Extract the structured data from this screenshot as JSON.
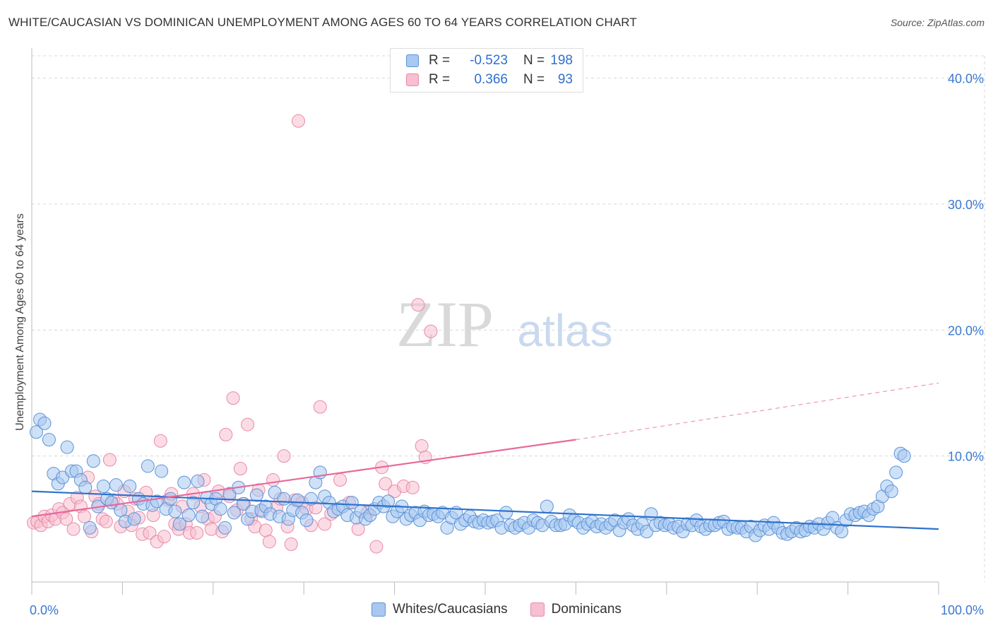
{
  "title": "WHITE/CAUCASIAN VS DOMINICAN UNEMPLOYMENT AMONG AGES 60 TO 64 YEARS CORRELATION CHART",
  "source": "Source: ZipAtlas.com",
  "watermark": {
    "zip": "ZIP",
    "atlas": "atlas"
  },
  "legend": {
    "rows": [
      {
        "name": "Whites/Caucasians",
        "r_label": "R =",
        "r_value": "-0.523",
        "n_label": "N =",
        "n_value": "198",
        "color": "#7eaee6"
      },
      {
        "name": "Dominicans",
        "r_label": "R =",
        "r_value": "0.366",
        "n_label": "N =",
        "n_value": "93",
        "color": "#f0a0bb"
      }
    ]
  },
  "colors": {
    "blue_fill": "#a8c8f0",
    "blue_stroke": "#5b92d8",
    "blue_line": "#2f72cc",
    "pink_fill": "#f7bfd0",
    "pink_stroke": "#e88aa8",
    "pink_line": "#e8689a",
    "grid": "#d8d8d8",
    "axis_text": "#3a78d0"
  },
  "chart_data": {
    "type": "scatter",
    "title": "WHITE/CAUCASIAN VS DOMINICAN UNEMPLOYMENT AMONG AGES 60 TO 64 YEARS CORRELATION CHART",
    "xlabel": "",
    "ylabel": "Unemployment Among Ages 60 to 64 years",
    "xlim": [
      0,
      100
    ],
    "ylim": [
      0,
      42
    ],
    "x_tick_labels": [
      {
        "value": 0,
        "label": "0.0%"
      },
      {
        "value": 100,
        "label": "100.0%"
      }
    ],
    "y_tick_labels": [
      {
        "value": 10,
        "label": "10.0%"
      },
      {
        "value": 20,
        "label": "20.0%"
      },
      {
        "value": 30,
        "label": "30.0%"
      },
      {
        "value": 40,
        "label": "40.0%"
      }
    ],
    "series": [
      {
        "name": "Whites/Caucasians",
        "points": [
          [
            0.5,
            11.9
          ],
          [
            0.9,
            12.9
          ],
          [
            1.4,
            12.6
          ],
          [
            1.9,
            11.3
          ],
          [
            2.4,
            8.6
          ],
          [
            2.9,
            7.8
          ],
          [
            3.4,
            8.3
          ],
          [
            3.9,
            10.7
          ],
          [
            4.4,
            8.8
          ],
          [
            4.9,
            8.8
          ],
          [
            5.4,
            8.1
          ],
          [
            5.9,
            7.5
          ],
          [
            6.4,
            4.3
          ],
          [
            6.8,
            9.6
          ],
          [
            7.3,
            6.0
          ],
          [
            7.9,
            7.6
          ],
          [
            8.3,
            6.6
          ],
          [
            8.8,
            6.3
          ],
          [
            9.3,
            7.7
          ],
          [
            9.8,
            5.7
          ],
          [
            10.3,
            4.8
          ],
          [
            10.8,
            7.6
          ],
          [
            11.3,
            5.0
          ],
          [
            11.8,
            6.6
          ],
          [
            12.3,
            6.2
          ],
          [
            12.8,
            9.2
          ],
          [
            13.3,
            6.1
          ],
          [
            13.8,
            6.4
          ],
          [
            14.3,
            8.8
          ],
          [
            14.8,
            5.8
          ],
          [
            15.3,
            6.6
          ],
          [
            15.8,
            5.6
          ],
          [
            16.3,
            4.6
          ],
          [
            16.8,
            7.9
          ],
          [
            17.3,
            5.3
          ],
          [
            17.8,
            6.3
          ],
          [
            18.3,
            8.0
          ],
          [
            18.8,
            5.2
          ],
          [
            19.3,
            6.7
          ],
          [
            19.8,
            6.2
          ],
          [
            20.3,
            6.6
          ],
          [
            20.8,
            5.8
          ],
          [
            21.3,
            4.3
          ],
          [
            21.8,
            7.0
          ],
          [
            22.3,
            5.5
          ],
          [
            22.8,
            7.5
          ],
          [
            23.3,
            6.2
          ],
          [
            23.8,
            5.0
          ],
          [
            24.3,
            5.6
          ],
          [
            24.8,
            6.9
          ],
          [
            25.3,
            5.7
          ],
          [
            25.8,
            6.0
          ],
          [
            26.3,
            5.4
          ],
          [
            26.8,
            7.1
          ],
          [
            27.3,
            5.2
          ],
          [
            27.8,
            6.6
          ],
          [
            28.3,
            5.0
          ],
          [
            28.8,
            5.7
          ],
          [
            29.3,
            6.5
          ],
          [
            29.8,
            5.5
          ],
          [
            30.3,
            4.9
          ],
          [
            30.8,
            6.6
          ],
          [
            31.3,
            7.9
          ],
          [
            31.8,
            8.7
          ],
          [
            32.3,
            6.8
          ],
          [
            32.8,
            6.3
          ],
          [
            33.3,
            5.6
          ],
          [
            33.8,
            5.8
          ],
          [
            34.3,
            6.0
          ],
          [
            34.8,
            5.3
          ],
          [
            35.3,
            6.3
          ],
          [
            35.8,
            5.1
          ],
          [
            36.3,
            5.6
          ],
          [
            36.8,
            5.0
          ],
          [
            37.3,
            5.3
          ],
          [
            37.8,
            5.8
          ],
          [
            38.3,
            6.3
          ],
          [
            38.8,
            6.0
          ],
          [
            39.3,
            6.4
          ],
          [
            39.8,
            5.2
          ],
          [
            40.3,
            5.6
          ],
          [
            40.8,
            6.0
          ],
          [
            41.3,
            5.0
          ],
          [
            41.8,
            5.3
          ],
          [
            42.3,
            5.5
          ],
          [
            42.8,
            4.9
          ],
          [
            43.3,
            5.6
          ],
          [
            43.8,
            5.3
          ],
          [
            44.3,
            5.4
          ],
          [
            44.8,
            5.2
          ],
          [
            45.3,
            5.5
          ],
          [
            45.8,
            4.3
          ],
          [
            46.3,
            5.1
          ],
          [
            46.8,
            5.5
          ],
          [
            47.3,
            4.6
          ],
          [
            47.8,
            4.9
          ],
          [
            48.3,
            5.2
          ],
          [
            48.8,
            4.8
          ],
          [
            49.3,
            4.7
          ],
          [
            49.8,
            4.9
          ],
          [
            50.3,
            4.7
          ],
          [
            50.8,
            4.8
          ],
          [
            51.3,
            4.9
          ],
          [
            51.8,
            4.3
          ],
          [
            52.3,
            5.5
          ],
          [
            52.8,
            4.5
          ],
          [
            53.3,
            4.3
          ],
          [
            53.8,
            4.5
          ],
          [
            54.3,
            4.7
          ],
          [
            54.8,
            4.3
          ],
          [
            55.3,
            4.9
          ],
          [
            55.8,
            4.7
          ],
          [
            56.3,
            4.5
          ],
          [
            56.8,
            6.0
          ],
          [
            57.3,
            4.8
          ],
          [
            57.8,
            4.5
          ],
          [
            58.3,
            4.5
          ],
          [
            58.8,
            4.6
          ],
          [
            59.3,
            5.3
          ],
          [
            59.8,
            4.9
          ],
          [
            60.3,
            4.7
          ],
          [
            60.8,
            4.3
          ],
          [
            61.3,
            4.6
          ],
          [
            61.8,
            4.8
          ],
          [
            62.3,
            4.4
          ],
          [
            62.8,
            4.6
          ],
          [
            63.3,
            4.3
          ],
          [
            63.8,
            4.6
          ],
          [
            64.3,
            4.9
          ],
          [
            64.8,
            4.1
          ],
          [
            65.3,
            4.7
          ],
          [
            65.8,
            5.0
          ],
          [
            66.3,
            4.5
          ],
          [
            66.8,
            4.2
          ],
          [
            67.3,
            4.6
          ],
          [
            67.8,
            4.0
          ],
          [
            68.3,
            5.4
          ],
          [
            68.8,
            4.5
          ],
          [
            69.3,
            4.7
          ],
          [
            69.8,
            4.5
          ],
          [
            70.3,
            4.6
          ],
          [
            70.8,
            4.3
          ],
          [
            71.3,
            4.4
          ],
          [
            71.8,
            4.0
          ],
          [
            72.3,
            4.6
          ],
          [
            72.8,
            4.5
          ],
          [
            73.3,
            4.9
          ],
          [
            73.8,
            4.4
          ],
          [
            74.3,
            4.2
          ],
          [
            74.8,
            4.5
          ],
          [
            75.3,
            4.5
          ],
          [
            75.8,
            4.7
          ],
          [
            76.3,
            4.8
          ],
          [
            76.8,
            4.2
          ],
          [
            77.3,
            4.4
          ],
          [
            77.8,
            4.3
          ],
          [
            78.3,
            4.3
          ],
          [
            78.8,
            4.0
          ],
          [
            79.3,
            4.4
          ],
          [
            79.8,
            3.7
          ],
          [
            80.3,
            4.1
          ],
          [
            80.8,
            4.5
          ],
          [
            81.3,
            4.2
          ],
          [
            81.8,
            4.7
          ],
          [
            82.3,
            4.3
          ],
          [
            82.8,
            3.9
          ],
          [
            83.3,
            3.8
          ],
          [
            83.8,
            4.0
          ],
          [
            84.3,
            4.3
          ],
          [
            84.8,
            4.0
          ],
          [
            85.3,
            4.1
          ],
          [
            85.8,
            4.4
          ],
          [
            86.3,
            4.3
          ],
          [
            86.8,
            4.6
          ],
          [
            87.3,
            4.2
          ],
          [
            87.8,
            4.7
          ],
          [
            88.3,
            5.1
          ],
          [
            88.8,
            4.3
          ],
          [
            89.3,
            4.0
          ],
          [
            89.8,
            4.9
          ],
          [
            90.3,
            5.4
          ],
          [
            90.8,
            5.3
          ],
          [
            91.3,
            5.5
          ],
          [
            91.8,
            5.6
          ],
          [
            92.3,
            5.3
          ],
          [
            92.8,
            5.8
          ],
          [
            93.3,
            6.0
          ],
          [
            93.8,
            6.8
          ],
          [
            94.3,
            7.6
          ],
          [
            94.8,
            7.2
          ],
          [
            95.3,
            8.7
          ],
          [
            95.8,
            10.2
          ],
          [
            96.2,
            10.0
          ]
        ]
      },
      {
        "name": "Dominicans",
        "points": [
          [
            0.2,
            4.7
          ],
          [
            0.6,
            4.8
          ],
          [
            1.0,
            4.5
          ],
          [
            1.4,
            5.2
          ],
          [
            1.8,
            4.8
          ],
          [
            2.2,
            5.3
          ],
          [
            2.6,
            5.0
          ],
          [
            3.0,
            5.8
          ],
          [
            3.4,
            5.5
          ],
          [
            3.8,
            5.0
          ],
          [
            4.2,
            6.2
          ],
          [
            4.6,
            4.2
          ],
          [
            5.0,
            6.7
          ],
          [
            5.4,
            6.0
          ],
          [
            5.8,
            5.2
          ],
          [
            6.2,
            8.3
          ],
          [
            6.6,
            4.0
          ],
          [
            7.0,
            6.8
          ],
          [
            7.4,
            6.2
          ],
          [
            7.8,
            5.0
          ],
          [
            8.2,
            4.8
          ],
          [
            8.6,
            9.7
          ],
          [
            9.0,
            6.5
          ],
          [
            9.4,
            6.2
          ],
          [
            9.8,
            4.4
          ],
          [
            10.2,
            7.2
          ],
          [
            10.6,
            5.6
          ],
          [
            11.0,
            4.5
          ],
          [
            11.4,
            6.6
          ],
          [
            11.8,
            5.1
          ],
          [
            12.2,
            3.8
          ],
          [
            12.6,
            7.1
          ],
          [
            13.0,
            3.9
          ],
          [
            13.4,
            5.3
          ],
          [
            13.8,
            3.2
          ],
          [
            14.2,
            11.2
          ],
          [
            14.6,
            3.6
          ],
          [
            15.0,
            6.5
          ],
          [
            15.4,
            7.0
          ],
          [
            15.8,
            4.6
          ],
          [
            16.2,
            4.2
          ],
          [
            16.6,
            6.0
          ],
          [
            17.0,
            4.6
          ],
          [
            17.4,
            3.9
          ],
          [
            17.8,
            7.0
          ],
          [
            18.2,
            3.9
          ],
          [
            18.6,
            6.0
          ],
          [
            19.0,
            8.1
          ],
          [
            19.4,
            5.0
          ],
          [
            19.8,
            4.2
          ],
          [
            20.2,
            5.2
          ],
          [
            20.6,
            7.2
          ],
          [
            21.0,
            4.0
          ],
          [
            21.4,
            11.7
          ],
          [
            21.8,
            6.8
          ],
          [
            22.2,
            14.6
          ],
          [
            22.6,
            5.7
          ],
          [
            23.0,
            9.0
          ],
          [
            23.4,
            6.2
          ],
          [
            23.8,
            12.5
          ],
          [
            24.2,
            5.0
          ],
          [
            24.6,
            4.4
          ],
          [
            25.0,
            7.3
          ],
          [
            25.4,
            5.6
          ],
          [
            25.8,
            4.1
          ],
          [
            26.2,
            3.2
          ],
          [
            26.6,
            8.1
          ],
          [
            27.0,
            5.9
          ],
          [
            27.4,
            6.6
          ],
          [
            27.8,
            10.0
          ],
          [
            28.2,
            4.4
          ],
          [
            28.6,
            3.0
          ],
          [
            29.0,
            6.5
          ],
          [
            29.4,
            36.6
          ],
          [
            29.8,
            6.3
          ],
          [
            30.3,
            5.8
          ],
          [
            30.8,
            4.5
          ],
          [
            31.3,
            5.9
          ],
          [
            31.8,
            13.9
          ],
          [
            32.3,
            4.6
          ],
          [
            33.0,
            5.4
          ],
          [
            34.0,
            8.1
          ],
          [
            35.0,
            6.3
          ],
          [
            36.0,
            4.2
          ],
          [
            37.0,
            5.5
          ],
          [
            38.0,
            2.8
          ],
          [
            38.6,
            9.1
          ],
          [
            39.0,
            7.8
          ],
          [
            40.0,
            7.2
          ],
          [
            41.0,
            7.6
          ],
          [
            42.0,
            7.5
          ],
          [
            42.6,
            22.0
          ],
          [
            43.0,
            10.8
          ],
          [
            43.4,
            9.9
          ],
          [
            44.0,
            19.9
          ]
        ]
      }
    ],
    "trend_lines": [
      {
        "name": "Whites/Caucasians",
        "x": [
          0,
          100
        ],
        "y": [
          7.2,
          4.2
        ],
        "style": "solid"
      },
      {
        "name": "Dominicans",
        "x": [
          0,
          60
        ],
        "y": [
          5.2,
          11.3
        ],
        "style": "solid",
        "extended_x": [
          60,
          100
        ],
        "extended_y": [
          11.3,
          15.8
        ],
        "extended_style": "dashed"
      }
    ],
    "legend_position": "top-center"
  }
}
